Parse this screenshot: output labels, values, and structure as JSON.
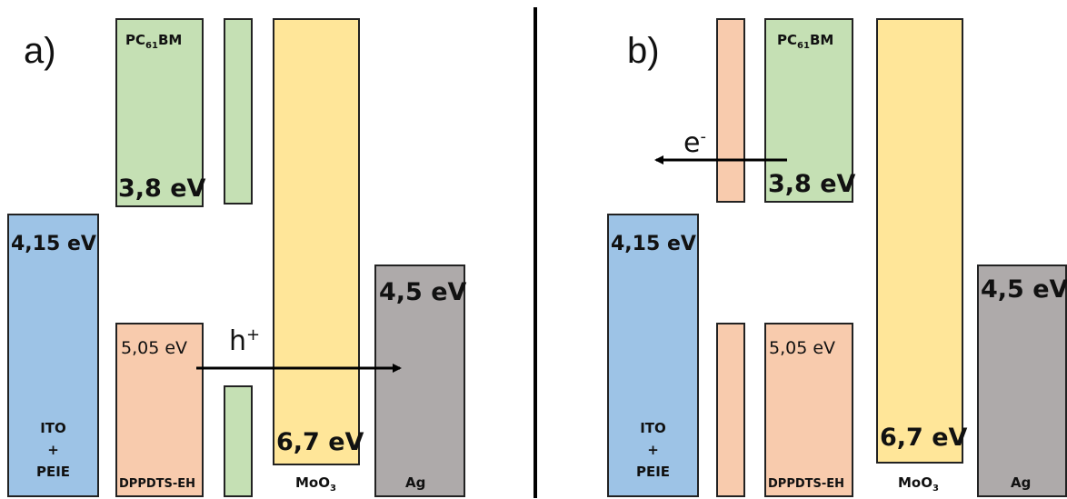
{
  "panel_a": {
    "label": "a)",
    "pcbm": {
      "prefix": "PC",
      "sub": "61",
      "suffix": "BM",
      "energy": "3,8 eV"
    },
    "ito": {
      "energy": "4,15 eV",
      "line1": "ITO",
      "line2": "+",
      "line3": "PEIE"
    },
    "dppdts": {
      "energy": "5,05 eV",
      "name": "DPPDTS-EH"
    },
    "moo3": {
      "energy": "6,7 eV",
      "prefix": "MoO",
      "sub": "3"
    },
    "ag": {
      "energy": "4,5 eV",
      "name": "Ag"
    },
    "carrier": {
      "letter": "h",
      "sup": "+"
    }
  },
  "panel_b": {
    "label": "b)",
    "pcbm": {
      "prefix": "PC",
      "sub": "61",
      "suffix": "BM",
      "energy": "3,8 eV"
    },
    "ito": {
      "energy": "4,15 eV",
      "line1": "ITO",
      "line2": "+",
      "line3": "PEIE"
    },
    "dppdts": {
      "energy": "5,05 eV",
      "name": "DPPDTS-EH"
    },
    "moo3": {
      "energy": "6,7 eV",
      "prefix": "MoO",
      "sub": "3"
    },
    "ag": {
      "energy": "4,5 eV",
      "name": "Ag"
    },
    "carrier": {
      "letter": "e",
      "sup": "-"
    }
  },
  "colors": {
    "ito": "#9dc3e6",
    "pcbm": "#c5e0b4",
    "dppdts": "#f8cbad",
    "moo3": "#ffe699",
    "ag": "#aeaaaa"
  }
}
